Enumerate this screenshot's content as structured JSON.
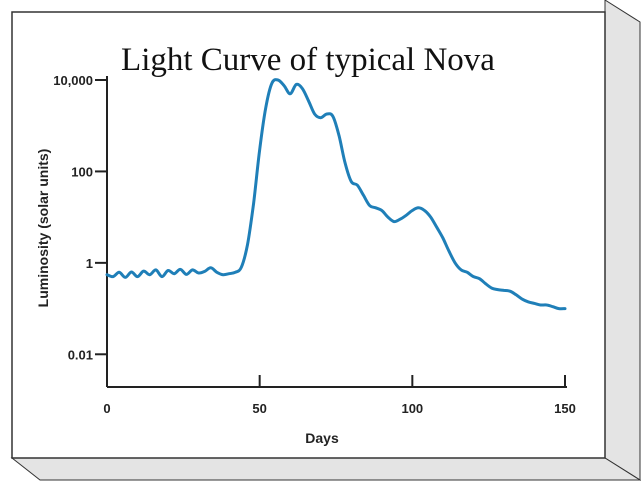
{
  "colors": {
    "panel_front": "#ffffff",
    "panel_side": "#e4e4e4",
    "panel_edge": "#333333",
    "line": "#1f7fb8",
    "axis": "#222222"
  },
  "chart_data": {
    "type": "line",
    "title": "Light Curve of typical Nova",
    "xlabel": "Days",
    "ylabel": "Luminosity (solar units)",
    "xlim": [
      0,
      150
    ],
    "ylim": [
      0.001,
      10000
    ],
    "y_scale": "log",
    "x_ticks": [
      0,
      50,
      100,
      150
    ],
    "x_tick_labels": [
      "0",
      "50",
      "100",
      "150"
    ],
    "y_ticks": [
      0.01,
      1,
      100,
      10000
    ],
    "y_tick_labels": [
      "0.01",
      "1",
      "100",
      "10,000"
    ],
    "grid": false,
    "series": [
      {
        "x": [
          0,
          2,
          4,
          6,
          8,
          10,
          12,
          14,
          16,
          18,
          20,
          22,
          24,
          26,
          28,
          30,
          32,
          34,
          36,
          38,
          40,
          42,
          44,
          46,
          48,
          50,
          52,
          54,
          56,
          58,
          60,
          62,
          64,
          66,
          68,
          70,
          72,
          74,
          76,
          78,
          80,
          82,
          84,
          86,
          88,
          90,
          92,
          94,
          96,
          98,
          100,
          102,
          104,
          106,
          108,
          110,
          112,
          114,
          116,
          118,
          120,
          122,
          124,
          126,
          128,
          130,
          132,
          134,
          136,
          138,
          140,
          142,
          144,
          146,
          148,
          150
        ],
        "y": [
          0.55,
          0.5,
          0.62,
          0.48,
          0.63,
          0.5,
          0.66,
          0.55,
          0.7,
          0.5,
          0.68,
          0.58,
          0.72,
          0.56,
          0.7,
          0.6,
          0.65,
          0.78,
          0.62,
          0.55,
          0.58,
          0.62,
          0.8,
          2.5,
          20,
          300,
          2500,
          8500,
          10000,
          7500,
          5000,
          8000,
          6500,
          3500,
          1800,
          1500,
          1800,
          1600,
          600,
          150,
          60,
          50,
          30,
          18,
          16,
          14,
          10,
          8,
          9,
          11,
          14,
          16,
          14,
          10,
          6,
          3.5,
          1.8,
          1.0,
          0.7,
          0.62,
          0.5,
          0.45,
          0.35,
          0.28,
          0.26,
          0.25,
          0.24,
          0.2,
          0.16,
          0.14,
          0.13,
          0.12,
          0.12,
          0.11,
          0.1,
          0.1
        ]
      }
    ]
  }
}
